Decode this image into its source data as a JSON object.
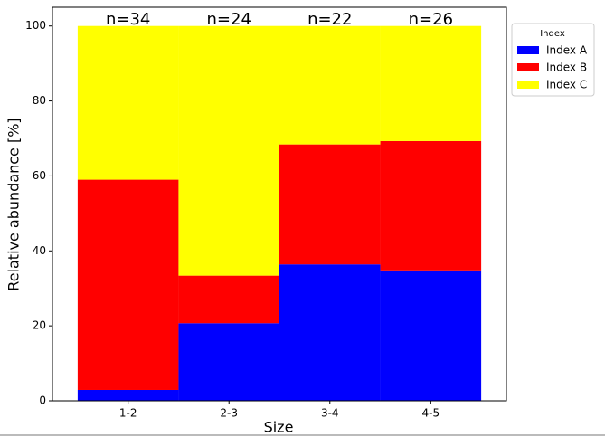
{
  "chart_data": {
    "type": "stacked-bar",
    "xlabel": "Size",
    "ylabel": "Relative abundance [%]",
    "categories": [
      "1-2",
      "2-3",
      "3-4",
      "4-5"
    ],
    "annotations": [
      "n=34",
      "n=24",
      "n=22",
      "n=26"
    ],
    "series": [
      {
        "name": "Index A",
        "color": "#0000ff",
        "values": [
          2.9,
          20.7,
          36.4,
          34.8
        ]
      },
      {
        "name": "Index B",
        "color": "#ff0000",
        "values": [
          56.1,
          12.7,
          32.0,
          34.5
        ]
      },
      {
        "name": "Index C",
        "color": "#ffff00",
        "values": [
          41.0,
          66.6,
          31.6,
          30.7
        ]
      }
    ],
    "ylim": [
      0,
      105
    ],
    "yticks": [
      0,
      20,
      40,
      60,
      80,
      100
    ],
    "legend_title": "Index",
    "legend_position": "outside-upper-right"
  }
}
